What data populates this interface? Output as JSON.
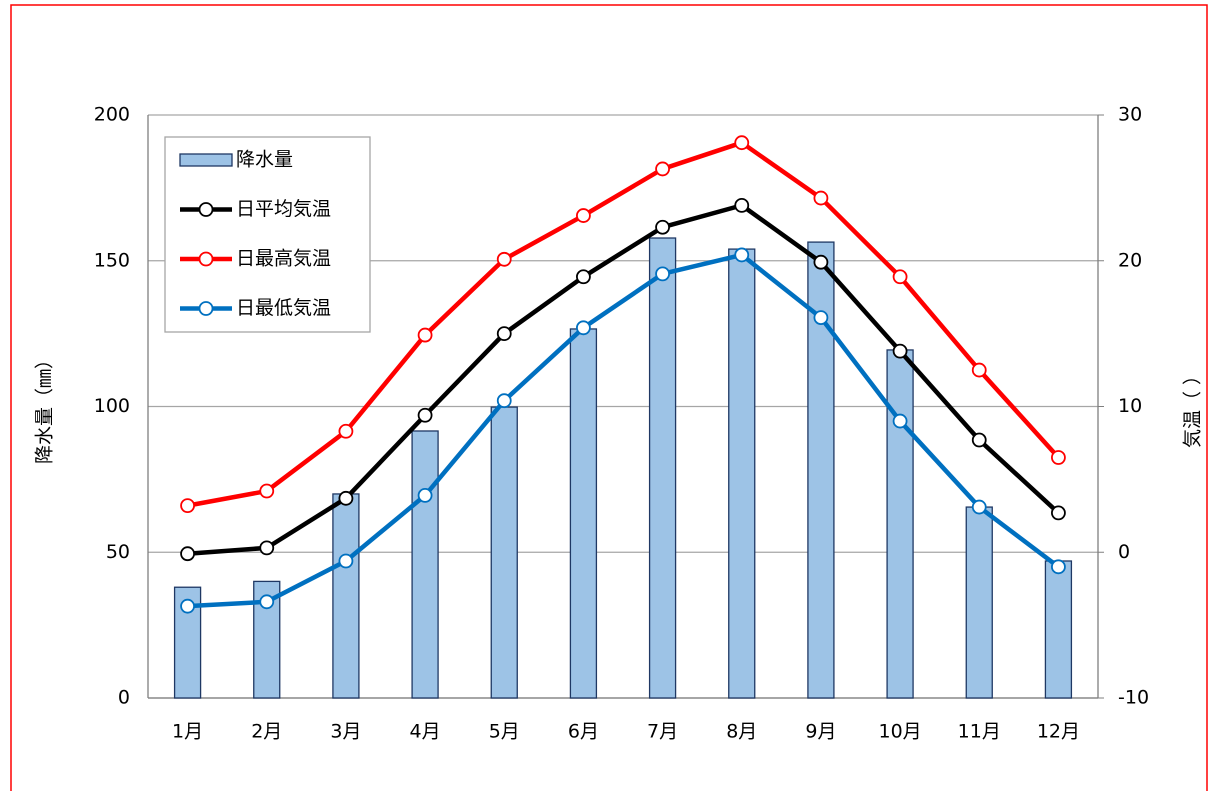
{
  "chart_data": {
    "type": "bar",
    "categories": [
      "1月",
      "2月",
      "3月",
      "4月",
      "5月",
      "6月",
      "7月",
      "8月",
      "9月",
      "10月",
      "11月",
      "12月"
    ],
    "y_label": "降水量（㎜）",
    "y2_label": "気温（ ）",
    "ylim": [
      0,
      200
    ],
    "yticks": [
      0,
      50,
      100,
      150,
      200
    ],
    "y2lim": [
      -10,
      30
    ],
    "y2ticks": [
      -10,
      0,
      10,
      20,
      30
    ],
    "grid": true,
    "legend": "upper left",
    "series": [
      {
        "name": "降水量",
        "type": "bar",
        "color": "#9dc3e6",
        "values": [
          38,
          40,
          70,
          91.6,
          99.8,
          126.6,
          157.8,
          154,
          156.4,
          119.4,
          65.5,
          47
        ]
      },
      {
        "name": "日平均気温",
        "type": "line",
        "axis": "y2",
        "color": "#000000",
        "values": [
          -0.1,
          0.3,
          3.7,
          9.4,
          15.0,
          18.9,
          22.3,
          23.8,
          19.9,
          13.8,
          7.7,
          2.7
        ]
      },
      {
        "name": "日最高気温",
        "type": "line",
        "axis": "y2",
        "color": "#ff0000",
        "values": [
          3.2,
          4.2,
          8.3,
          14.9,
          20.1,
          23.1,
          26.3,
          28.1,
          24.3,
          18.9,
          12.5,
          6.5
        ]
      },
      {
        "name": "日最低気温",
        "type": "line",
        "axis": "y2",
        "color": "#0070c0",
        "values": [
          -3.7,
          -3.4,
          -0.6,
          3.9,
          10.4,
          15.4,
          19.1,
          20.4,
          16.1,
          9.0,
          3.1,
          -1.0
        ]
      }
    ]
  }
}
